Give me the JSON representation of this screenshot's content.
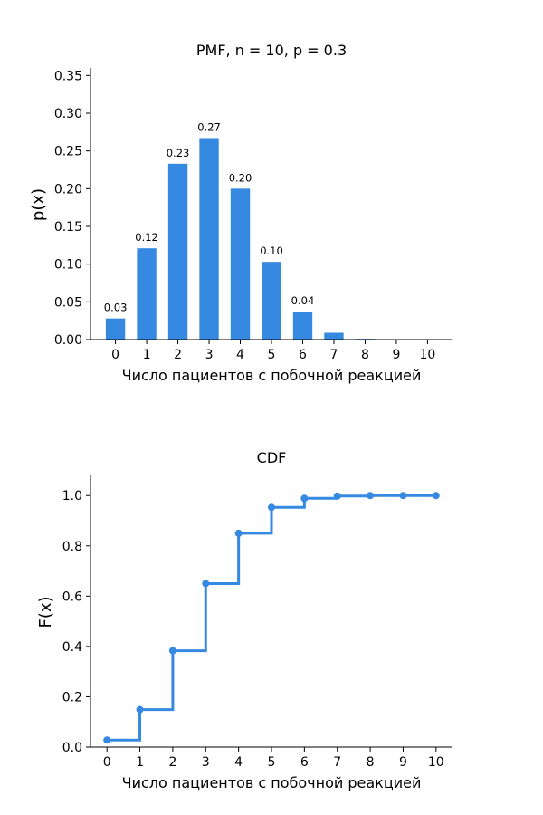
{
  "chart_data": [
    {
      "type": "bar",
      "title": "PMF, n = 10, p = 0.3",
      "xlabel": "Число пациентов с побочной реакцией",
      "ylabel": "p(x)",
      "categories": [
        "0",
        "1",
        "2",
        "3",
        "4",
        "5",
        "6",
        "7",
        "8",
        "9",
        "10"
      ],
      "values": [
        0.028,
        0.121,
        0.233,
        0.267,
        0.2,
        0.103,
        0.037,
        0.009,
        0.001,
        0.0001,
        0.0
      ],
      "data_labels": [
        "0.03",
        "0.12",
        "0.23",
        "0.27",
        "0.20",
        "0.10",
        "0.04",
        "",
        "",
        "",
        ""
      ],
      "ylim": [
        0,
        0.36
      ],
      "yticks": [
        "0.00",
        "0.05",
        "0.10",
        "0.15",
        "0.20",
        "0.25",
        "0.30",
        "0.35"
      ],
      "ytick_values": [
        0,
        0.05,
        0.1,
        0.15,
        0.2,
        0.25,
        0.3,
        0.35
      ],
      "color": "#3689e0",
      "grid": false
    },
    {
      "type": "line",
      "step": "post",
      "title": "CDF",
      "xlabel": "Число пациентов с побочной реакцией",
      "ylabel": "F(x)",
      "x": [
        0,
        1,
        2,
        3,
        4,
        5,
        6,
        7,
        8,
        9,
        10
      ],
      "values": [
        0.028,
        0.149,
        0.383,
        0.65,
        0.85,
        0.953,
        0.989,
        0.998,
        1.0,
        1.0,
        1.0
      ],
      "xticks": [
        "0",
        "1",
        "2",
        "3",
        "4",
        "5",
        "6",
        "7",
        "8",
        "9",
        "10"
      ],
      "yticks": [
        "0.0",
        "0.2",
        "0.4",
        "0.6",
        "0.8",
        "1.0"
      ],
      "ytick_values": [
        0,
        0.2,
        0.4,
        0.6,
        0.8,
        1.0
      ],
      "ylim": [
        0,
        1.08
      ],
      "xlim": [
        -0.5,
        10.5
      ],
      "color": "#3689e0",
      "grid": false
    }
  ]
}
